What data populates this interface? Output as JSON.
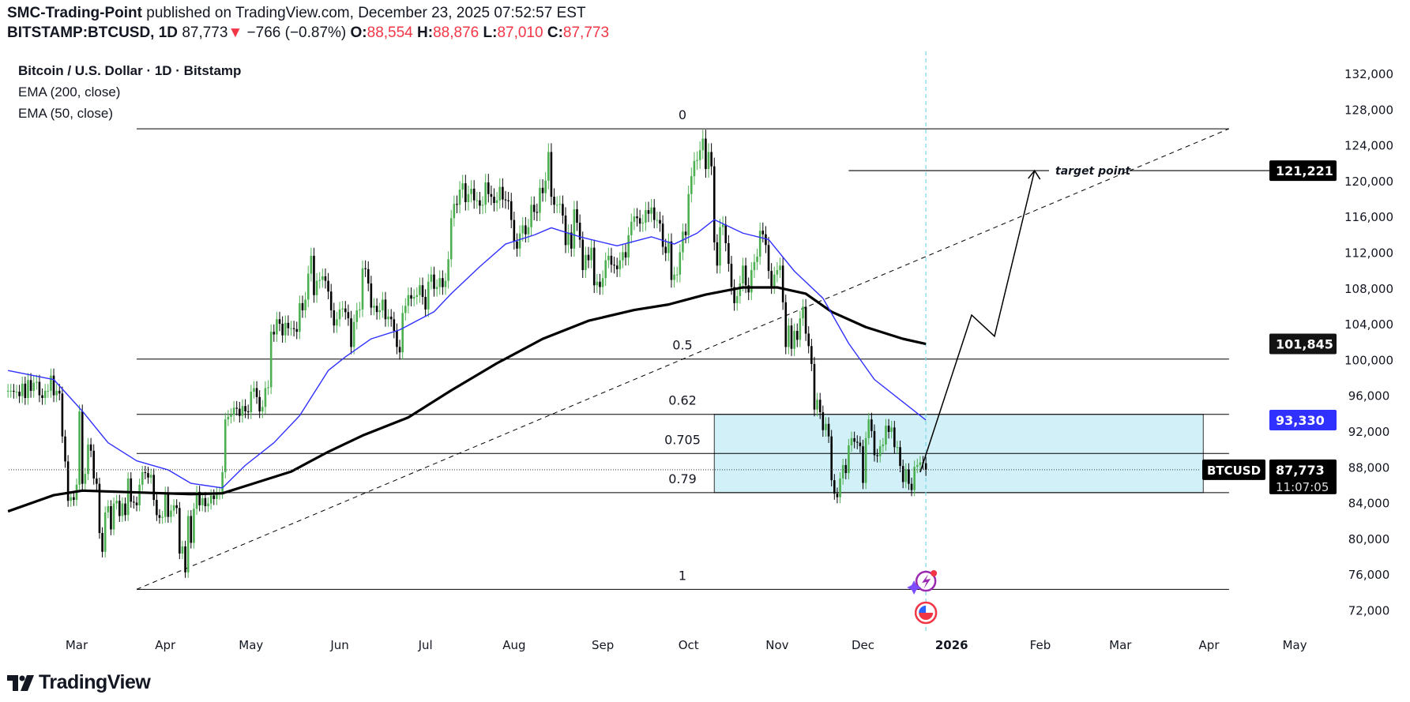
{
  "header": {
    "author": "SMC-Trading-Point",
    "published": "published on TradingView.com, December 23, 2025 07:52:57 EST",
    "symbol": "BITSTAMP:BTCUSD, 1D",
    "last": "87,773",
    "change": "−766 (−0.87%)",
    "o_label": "O:",
    "o": "88,554",
    "h_label": "H:",
    "h": "88,876",
    "l_label": "L:",
    "l": "87,010",
    "c_label": "C:",
    "c": "87,773"
  },
  "legend": {
    "title": "Bitcoin / U.S. Dollar · 1D · Bitstamp",
    "ema200": "EMA (200, close)",
    "ema50": "EMA (50, close)"
  },
  "brand": {
    "name": "TradingView"
  },
  "icons": [
    "tradingview-logo-icon",
    "events-lightning-icon",
    "us-flag-economic-event-icon",
    "down-triangle-icon"
  ],
  "colors": {
    "up": "#4caf50",
    "down": "#000000",
    "ema50": "#3030ff",
    "ema200": "#000000",
    "zone": "#d1f0f7",
    "today_line": "#7ad7e8",
    "negative": "#f23645"
  },
  "chart_data": {
    "type": "candlestick",
    "symbol": "BTCUSD",
    "interval": "1D",
    "start_date": "2025-02-05",
    "closes": [
      96600,
      96600,
      96500,
      96500,
      96000,
      97400,
      95800,
      97800,
      96600,
      97500,
      97600,
      96100,
      95800,
      96600,
      96600,
      98300,
      96100,
      96600,
      96300,
      91500,
      88700,
      84300,
      84700,
      84400,
      86100,
      94300,
      86200,
      87300,
      90600,
      89900,
      86800,
      86200,
      80700,
      78600,
      83000,
      83700,
      81100,
      84000,
      84300,
      82600,
      84000,
      82700,
      86800,
      84200,
      84100,
      83800,
      86100,
      87500,
      87400,
      86900,
      87200,
      84400,
      82700,
      82400,
      82500,
      85200,
      82500,
      83200,
      83800,
      83500,
      78400,
      79200,
      76300,
      82600,
      79600,
      83400,
      85300,
      83800,
      84600,
      83700,
      84000,
      84900,
      84500,
      85100,
      85200,
      87500,
      93400,
      93700,
      93900,
      94700,
      94600,
      93800,
      94900,
      94300,
      94200,
      96500,
      96900,
      95900,
      94300,
      94800,
      96900,
      97000,
      103200,
      102900,
      104600,
      104100,
      102800,
      104200,
      103600,
      103600,
      103500,
      103200,
      106400,
      105600,
      106800,
      109700,
      111700,
      107300,
      108900,
      109000,
      109400,
      108900,
      107700,
      105600,
      103900,
      104600,
      105700,
      105800,
      105400,
      104700,
      101500,
      104300,
      105600,
      105700,
      110300,
      110200,
      108600,
      105900,
      106100,
      105400,
      105600,
      106800,
      104600,
      104900,
      104600,
      103300,
      101500,
      100900,
      105300,
      106100,
      107300,
      106900,
      107100,
      107300,
      108400,
      107100,
      105700,
      108800,
      109600,
      108000,
      108200,
      109200,
      108200,
      108900,
      111300,
      115900,
      117500,
      117400,
      119100,
      119800,
      117700,
      118600,
      119200,
      117900,
      117900,
      117300,
      117400,
      119900,
      118600,
      118300,
      117600,
      117900,
      119400,
      118000,
      117900,
      117800,
      115700,
      113300,
      112500,
      114200,
      115100,
      114100,
      114900,
      117400,
      116600,
      116500,
      119300,
      118700,
      120100,
      123300,
      118300,
      117400,
      117400,
      117500,
      116200,
      112900,
      114300,
      112500,
      116900,
      115400,
      113500,
      110100,
      111800,
      111200,
      112600,
      108400,
      108800,
      108200,
      109200,
      111200,
      111700,
      110700,
      110600,
      110200,
      111200,
      112100,
      111500,
      114000,
      115500,
      116100,
      115900,
      115300,
      115400,
      116800,
      116400,
      117100,
      115700,
      115700,
      115300,
      112700,
      112000,
      113300,
      109000,
      109600,
      109600,
      112100,
      114400,
      114000,
      118600,
      120600,
      122300,
      122400,
      123500,
      124800,
      121400,
      123300,
      121700,
      113200,
      110600,
      114900,
      115200,
      113100,
      110800,
      108200,
      106400,
      107200,
      108600,
      110600,
      108400,
      107600,
      110100,
      111000,
      111600,
      114500,
      114100,
      112900,
      110000,
      108300,
      109600,
      110100,
      110600,
      106500,
      101500,
      103900,
      101300,
      103300,
      102300,
      104700,
      106000,
      103000,
      101600,
      99600,
      94500,
      95600,
      94200,
      92200,
      92900,
      91500,
      86600,
      85100,
      84700,
      86800,
      88300,
      87400,
      90500,
      91300,
      90900,
      90800,
      90400,
      86300,
      91300,
      93400,
      92100,
      89400,
      89300,
      90400,
      90600,
      92700,
      92000,
      92500,
      90300,
      90300,
      88200,
      86400,
      87800,
      86200,
      85500,
      88100,
      88300,
      88600,
      88500,
      87773
    ],
    "ema50": [
      [
        "2025-02-05",
        98870
      ],
      [
        "2025-02-21",
        97860
      ],
      [
        "2025-03-03",
        94330
      ],
      [
        "2025-03-12",
        90790
      ],
      [
        "2025-03-22",
        88770
      ],
      [
        "2025-04-02",
        87760
      ],
      [
        "2025-04-10",
        86250
      ],
      [
        "2025-04-21",
        85740
      ],
      [
        "2025-04-29",
        88270
      ],
      [
        "2025-05-09",
        90790
      ],
      [
        "2025-05-18",
        93820
      ],
      [
        "2025-05-28",
        98870
      ],
      [
        "2025-06-03",
        100390
      ],
      [
        "2025-06-12",
        102410
      ],
      [
        "2025-06-22",
        103420
      ],
      [
        "2025-07-04",
        105440
      ],
      [
        "2025-07-10",
        107460
      ],
      [
        "2025-07-20",
        110490
      ],
      [
        "2025-07-29",
        113010
      ],
      [
        "2025-08-08",
        114020
      ],
      [
        "2025-08-14",
        114830
      ],
      [
        "2025-08-24",
        113820
      ],
      [
        "2025-09-06",
        112810
      ],
      [
        "2025-09-18",
        113820
      ],
      [
        "2025-09-26",
        113010
      ],
      [
        "2025-10-04",
        114230
      ],
      [
        "2025-10-10",
        115740
      ],
      [
        "2025-10-20",
        114230
      ],
      [
        "2025-10-29",
        113520
      ],
      [
        "2025-11-07",
        109980
      ],
      [
        "2025-11-17",
        106950
      ],
      [
        "2025-11-26",
        101900
      ],
      [
        "2025-12-05",
        97860
      ],
      [
        "2025-12-15",
        95340
      ],
      [
        "2025-12-23",
        93330
      ]
    ],
    "ema200": [
      [
        "2025-02-05",
        83120
      ],
      [
        "2025-02-21",
        84930
      ],
      [
        "2025-03-03",
        85440
      ],
      [
        "2025-03-22",
        85240
      ],
      [
        "2025-04-10",
        85040
      ],
      [
        "2025-04-21",
        85140
      ],
      [
        "2025-05-02",
        86250
      ],
      [
        "2025-05-15",
        87560
      ],
      [
        "2025-05-28",
        89780
      ],
      [
        "2025-06-09",
        91600
      ],
      [
        "2025-06-25",
        93620
      ],
      [
        "2025-07-10",
        96650
      ],
      [
        "2025-07-26",
        99680
      ],
      [
        "2025-08-11",
        102410
      ],
      [
        "2025-08-27",
        104430
      ],
      [
        "2025-09-12",
        105640
      ],
      [
        "2025-09-24",
        106250
      ],
      [
        "2025-10-07",
        107360
      ],
      [
        "2025-10-20",
        108160
      ],
      [
        "2025-11-01",
        108160
      ],
      [
        "2025-11-11",
        107460
      ],
      [
        "2025-11-20",
        105440
      ],
      [
        "2025-12-02",
        103720
      ],
      [
        "2025-12-15",
        102410
      ],
      [
        "2025-12-23",
        101845
      ]
    ],
    "price_axis": {
      "min": 72000,
      "max": 132000,
      "step": 4000
    },
    "time_axis": [
      [
        "2025-03-01",
        "Mar"
      ],
      [
        "2025-04-01",
        "Apr"
      ],
      [
        "2025-05-01",
        "May"
      ],
      [
        "2025-06-01",
        "Jun"
      ],
      [
        "2025-07-01",
        "Jul"
      ],
      [
        "2025-08-01",
        "Aug"
      ],
      [
        "2025-09-01",
        "Sep"
      ],
      [
        "2025-10-01",
        "Oct"
      ],
      [
        "2025-11-01",
        "Nov"
      ],
      [
        "2025-12-01",
        "Dec"
      ],
      [
        "2026-01-01",
        "2026"
      ],
      [
        "2026-02-01",
        "Feb"
      ],
      [
        "2026-03-01",
        "Mar"
      ],
      [
        "2026-04-01",
        "Apr"
      ],
      [
        "2026-05-01",
        "May"
      ]
    ],
    "fibonacci": {
      "high": 125900,
      "low": 74400,
      "start": "2025-03-22",
      "end": "2026-04-08",
      "levels": [
        {
          "ratio": 0,
          "label": "0"
        },
        {
          "ratio": 0.5,
          "label": "0.5"
        },
        {
          "ratio": 0.62,
          "label": "0.62"
        },
        {
          "ratio": 0.705,
          "label": "0.705"
        },
        {
          "ratio": 0.79,
          "label": "0.79"
        },
        {
          "ratio": 1,
          "label": "1"
        }
      ]
    },
    "zone": {
      "start": "2025-10-10",
      "end": "2026-03-30",
      "top_ratio": 0.62,
      "bottom_ratio": 0.79
    },
    "trendline": {
      "from": [
        "2025-03-22",
        74400
      ],
      "to": [
        "2026-04-08",
        125900
      ],
      "style": "dashed"
    },
    "target": {
      "label": "target point",
      "price": 121221,
      "price_label": "121,221",
      "from": "2025-11-26"
    },
    "projection": [
      [
        "2025-12-21",
        87500
      ],
      [
        "2026-01-08",
        105070
      ],
      [
        "2026-01-16",
        102700
      ],
      [
        "2026-01-30",
        121221
      ]
    ],
    "today": "2025-12-23",
    "tags": {
      "ema200": "101,845",
      "ema50": "93,330",
      "symbol": "BTCUSD",
      "last": "87,773",
      "last_price": 87773,
      "countdown": "11:07:05"
    }
  }
}
